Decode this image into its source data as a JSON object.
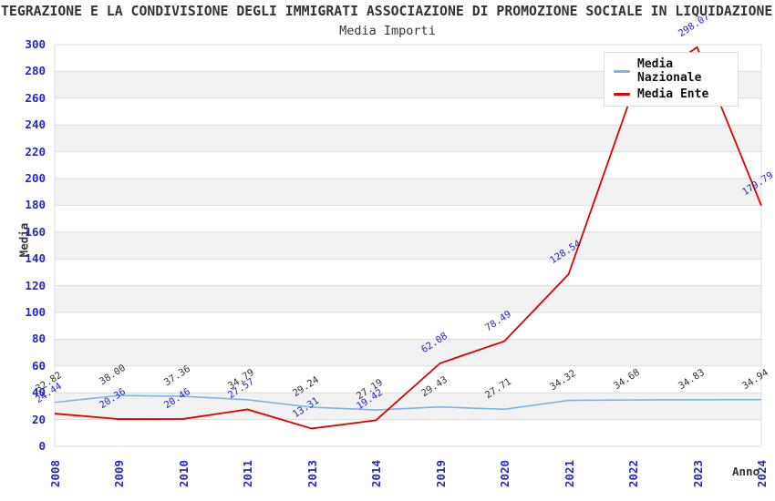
{
  "chart_data": {
    "type": "line",
    "title": "TEGRAZIONE E LA CONDIVISIONE DEGLI IMMIGRATI ASSOCIAZIONE DI PROMOZIONE SOCIALE IN LIQUIDAZIONE",
    "subtitle": "Media Importi",
    "xlabel": "Anno",
    "ylabel": "Media",
    "ylim": [
      0,
      300
    ],
    "ytick_step": 20,
    "grid": true,
    "legend_position": "top-right",
    "categories": [
      "2008",
      "2009",
      "2010",
      "2011",
      "2013",
      "2014",
      "2019",
      "2020",
      "2021",
      "2022",
      "2023",
      "2024"
    ],
    "series": [
      {
        "name": "Media Nazionale",
        "color": "#7cb5ec",
        "label_color": "#333333",
        "values": [
          32.82,
          38.0,
          37.36,
          34.79,
          29.24,
          27.19,
          29.43,
          27.71,
          34.32,
          34.68,
          34.83,
          34.94
        ],
        "labels": [
          "32.82",
          "38.00",
          "37.36",
          "34.79",
          "29.24",
          "27.19",
          "29.43",
          "27.71",
          "34.32",
          "34.68",
          "34.83",
          "34.94"
        ]
      },
      {
        "name": "Media Ente",
        "color": "#e00000",
        "label_color": "#2525d0",
        "values": [
          24.44,
          20.36,
          20.46,
          27.57,
          13.31,
          19.42,
          62.08,
          78.49,
          128.54,
          265,
          298.07,
          179.79
        ],
        "labels": [
          "24.44",
          "20.36",
          "20.46",
          "27.57",
          "13.31",
          "19.42",
          "62.08",
          "78.49",
          "128.54",
          "",
          "298.07",
          "179.79"
        ]
      }
    ],
    "colors": {
      "tick": "#2525d0",
      "grid": "#dddddd",
      "band": "#f2f2f2",
      "background": "#ffffff"
    }
  },
  "legend": {
    "items": [
      {
        "label": "Media Nazionale",
        "color": "#7cb5ec"
      },
      {
        "label": "Media Ente",
        "color": "#e00000"
      }
    ]
  }
}
